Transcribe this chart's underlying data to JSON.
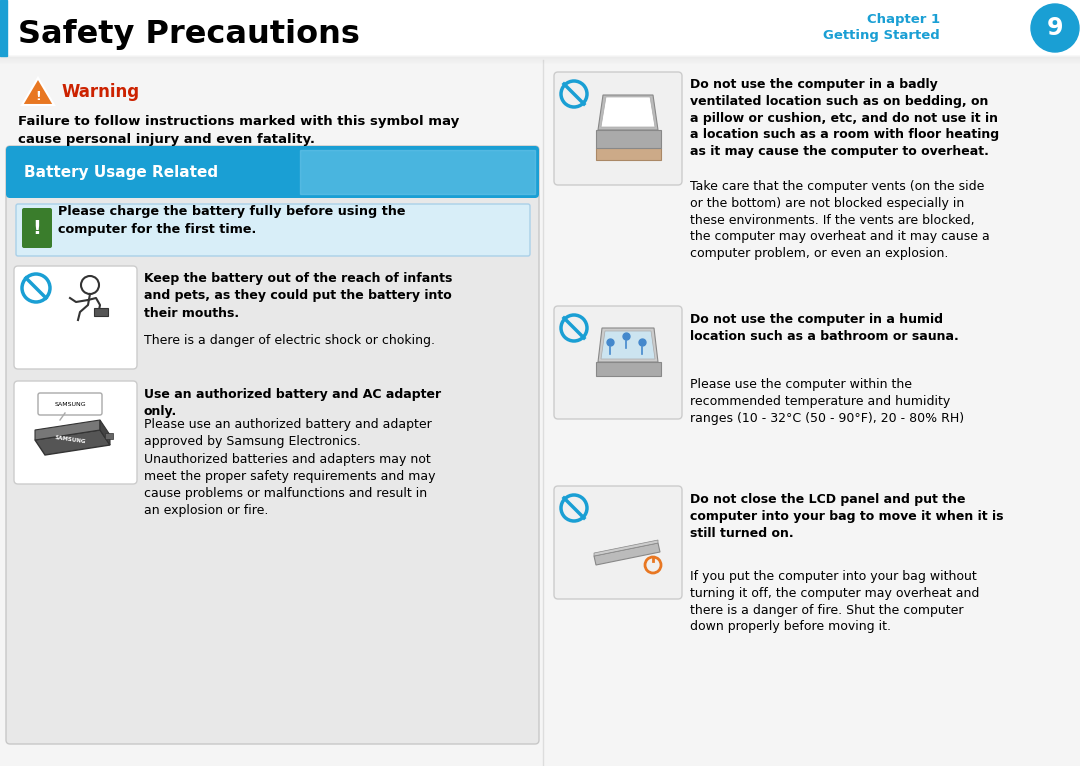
{
  "title": "Safety Precautions",
  "chapter": "Chapter 1",
  "chapter_sub": "Getting Started",
  "chapter_num": "9",
  "blue_color": "#1a9fd4",
  "orange_color": "#e87722",
  "red_color": "#cc2200",
  "green_color": "#3a7d2c",
  "warning_title": "Warning",
  "warning_body": "Failure to follow instructions marked with this symbol may\ncause personal injury and even fatality.",
  "battery_section": "Battery Usage Related",
  "charge_note": "Please charge the battery fully before using the\ncomputer for the first time.",
  "item1_bold": "Keep the battery out of the reach of infants\nand pets, as they could put the battery into\ntheir mouths.",
  "item1_body": "There is a danger of electric shock or choking.",
  "item2_bold": "Use an authorized battery and AC adapter\nonly.",
  "item2_body1": "Please use an authorized battery and adapter\napproved by Samsung Electronics.",
  "item2_body2": "Unauthorized batteries and adapters may not\nmeet the proper safety requirements and may\ncause problems or malfunctions and result in\nan explosion or fire.",
  "right1_bold": "Do not use the computer in a badly\nventilated location such as on bedding, on\na pillow or cushion, etc, and do not use it in\na location such as a room with floor heating\nas it may cause the computer to overheat.",
  "right1_body": "Take care that the computer vents (on the side\nor the bottom) are not blocked especially in\nthese environments. If the vents are blocked,\nthe computer may overheat and it may cause a\ncomputer problem, or even an explosion.",
  "right2_bold": "Do not use the computer in a humid\nlocation such as a bathroom or sauna.",
  "right2_body": "Please use the computer within the\nrecommended temperature and humidity\nranges (10 - 32°C (50 - 90°F), 20 - 80% RH)",
  "right3_bold": "Do not close the LCD panel and put the\ncomputer into your bag to move it when it is\nstill turned on.",
  "right3_body": "If you put the computer into your bag without\nturning it off, the computer may overheat and\nthere is a danger of fire. Shut the computer\ndown properly before moving it.",
  "bg_color": "#f5f5f5"
}
